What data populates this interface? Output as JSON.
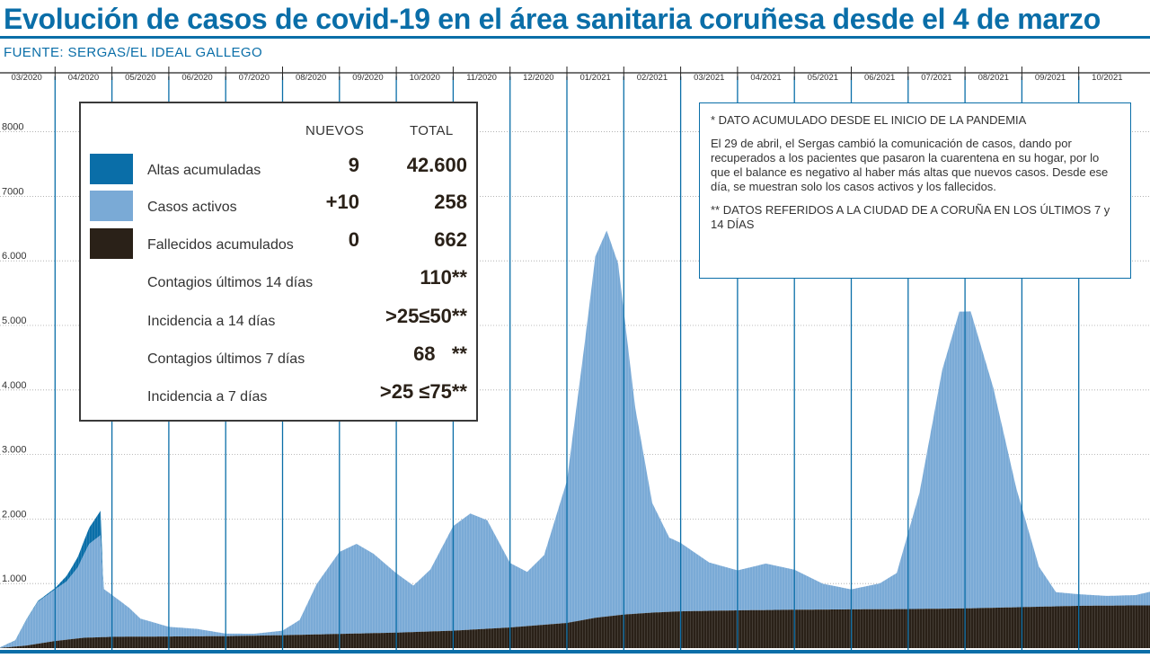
{
  "header": {
    "title": "Evolución de casos de covid-19 en el área sanitaria coruñesa desde el 4 de marzo",
    "source": "FUENTE: SERGAS/EL IDEAL GALLEGO"
  },
  "legend": {
    "col_new": "NUEVOS",
    "col_total": "TOTAL",
    "rows": [
      {
        "label": "Altas acumuladas",
        "new": "9",
        "total": "42.600",
        "color": "#0a6ea8"
      },
      {
        "label": "Casos activos",
        "new": "+10",
        "total": "258",
        "color": "#7aaad6"
      },
      {
        "label": "Fallecidos acumulados",
        "new": "0",
        "total": "662",
        "color": "#2a2118"
      },
      {
        "label": "Contagios últimos 14 días",
        "new": "",
        "total": "110**"
      },
      {
        "label": "Incidencia a 14 días",
        "new": "",
        "total": ">25≤50**"
      },
      {
        "label": "Contagios últimos 7 días",
        "new": "",
        "total": "68   **"
      },
      {
        "label": "Incidencia a 7 días",
        "new": "",
        "total": ">25 ≤75**"
      }
    ]
  },
  "notes": {
    "line1": "* DATO ACUMULADO DESDE EL INICIO DE LA PANDEMIA",
    "line2": "El 29 de abril, el Sergas cambió la comunicación de casos, dando por recuperados a los pacientes que pasaron la cuarentena en su hogar, por lo que el balance es negativo al haber más altas que nuevos casos. Desde ese día, se muestran solo los casos activos y los fallecidos.",
    "line3": "** DATOS REFERIDOS A LA CIUDAD DE A CORUÑA EN LOS ÚLTIMOS 7 y 14 DÍAS"
  },
  "chart_data": {
    "type": "area",
    "title": "Evolución de casos de covid-19 en el área sanitaria coruñesa desde el 4 de marzo",
    "x_unit": "month",
    "month_labels": [
      "03/2020",
      "04/2020",
      "05/2020",
      "06/2020",
      "07/2020",
      "08/2020",
      "09/2020",
      "10/2020",
      "11/2020",
      "12/2020",
      "01/2021",
      "02/2021",
      "03/2021",
      "04/2021",
      "05/2021",
      "06/2021",
      "07/2021",
      "08/2021",
      "09/2021",
      "10/2021"
    ],
    "y_ticks": [
      {
        "value": 1000,
        "label": "1.000"
      },
      {
        "value": 2000,
        "label": "2.000"
      },
      {
        "value": 3000,
        "label": "3.000"
      },
      {
        "value": 4000,
        "label": "4.000"
      },
      {
        "value": 5000,
        "label": "5.000"
      },
      {
        "value": 6000,
        "label": "6.000"
      },
      {
        "value": 7000,
        "label": "7000"
      },
      {
        "value": 8000,
        "label": "8000"
      }
    ],
    "ylim": [
      0,
      8800
    ],
    "xlim": [
      0,
      20.5
    ],
    "stacked": true,
    "series": [
      {
        "name": "Fallecidos acumulados",
        "color": "#2a2118",
        "points": [
          [
            0,
            0
          ],
          [
            0.5,
            40
          ],
          [
            1,
            110
          ],
          [
            1.5,
            160
          ],
          [
            2,
            175
          ],
          [
            3,
            180
          ],
          [
            4,
            185
          ],
          [
            5,
            200
          ],
          [
            6,
            220
          ],
          [
            7,
            240
          ],
          [
            8,
            270
          ],
          [
            9,
            320
          ],
          [
            10,
            390
          ],
          [
            10.5,
            470
          ],
          [
            11,
            520
          ],
          [
            11.5,
            550
          ],
          [
            12,
            570
          ],
          [
            13,
            585
          ],
          [
            14,
            595
          ],
          [
            15,
            600
          ],
          [
            16,
            605
          ],
          [
            17,
            615
          ],
          [
            18,
            635
          ],
          [
            19,
            655
          ],
          [
            20,
            662
          ],
          [
            20.5,
            662
          ]
        ]
      },
      {
        "name": "Casos activos",
        "color": "#7aaad6",
        "points": [
          [
            0,
            0
          ],
          [
            0.3,
            90
          ],
          [
            0.5,
            400
          ],
          [
            0.7,
            650
          ],
          [
            1,
            800
          ],
          [
            1.2,
            900
          ],
          [
            1.4,
            1100
          ],
          [
            1.6,
            1450
          ],
          [
            1.8,
            1580
          ],
          [
            1.85,
            750
          ],
          [
            2,
            650
          ],
          [
            2.3,
            450
          ],
          [
            2.5,
            280
          ],
          [
            3,
            150
          ],
          [
            3.5,
            115
          ],
          [
            4,
            40
          ],
          [
            4.5,
            30
          ],
          [
            5,
            70
          ],
          [
            5.3,
            230
          ],
          [
            5.6,
            780
          ],
          [
            6,
            1270
          ],
          [
            6.3,
            1390
          ],
          [
            6.6,
            1230
          ],
          [
            7,
            920
          ],
          [
            7.3,
            720
          ],
          [
            7.6,
            960
          ],
          [
            8,
            1620
          ],
          [
            8.3,
            1800
          ],
          [
            8.6,
            1680
          ],
          [
            9,
            1000
          ],
          [
            9.3,
            840
          ],
          [
            9.6,
            1080
          ],
          [
            10,
            2200
          ],
          [
            10.3,
            4200
          ],
          [
            10.5,
            5600
          ],
          [
            10.7,
            5980
          ],
          [
            10.9,
            5450
          ],
          [
            11.2,
            3200
          ],
          [
            11.5,
            1700
          ],
          [
            11.8,
            1150
          ],
          [
            12,
            1060
          ],
          [
            12.5,
            750
          ],
          [
            13,
            620
          ],
          [
            13.5,
            720
          ],
          [
            14,
            620
          ],
          [
            14.5,
            400
          ],
          [
            15,
            310
          ],
          [
            15.5,
            400
          ],
          [
            15.8,
            560
          ],
          [
            16.2,
            1800
          ],
          [
            16.6,
            3700
          ],
          [
            16.9,
            4600
          ],
          [
            17.1,
            4600
          ],
          [
            17.5,
            3400
          ],
          [
            17.9,
            1850
          ],
          [
            18.3,
            620
          ],
          [
            18.6,
            220
          ],
          [
            19,
            180
          ],
          [
            19.5,
            150
          ],
          [
            20,
            160
          ],
          [
            20.5,
            260
          ]
        ]
      },
      {
        "name": "Altas acumuladas",
        "color": "#0a6ea8",
        "points": [
          [
            0,
            0
          ],
          [
            1,
            20
          ],
          [
            1.3,
            120
          ],
          [
            1.6,
            250
          ],
          [
            1.8,
            380
          ],
          [
            1.85,
            0
          ],
          [
            20.5,
            0
          ]
        ]
      }
    ]
  }
}
